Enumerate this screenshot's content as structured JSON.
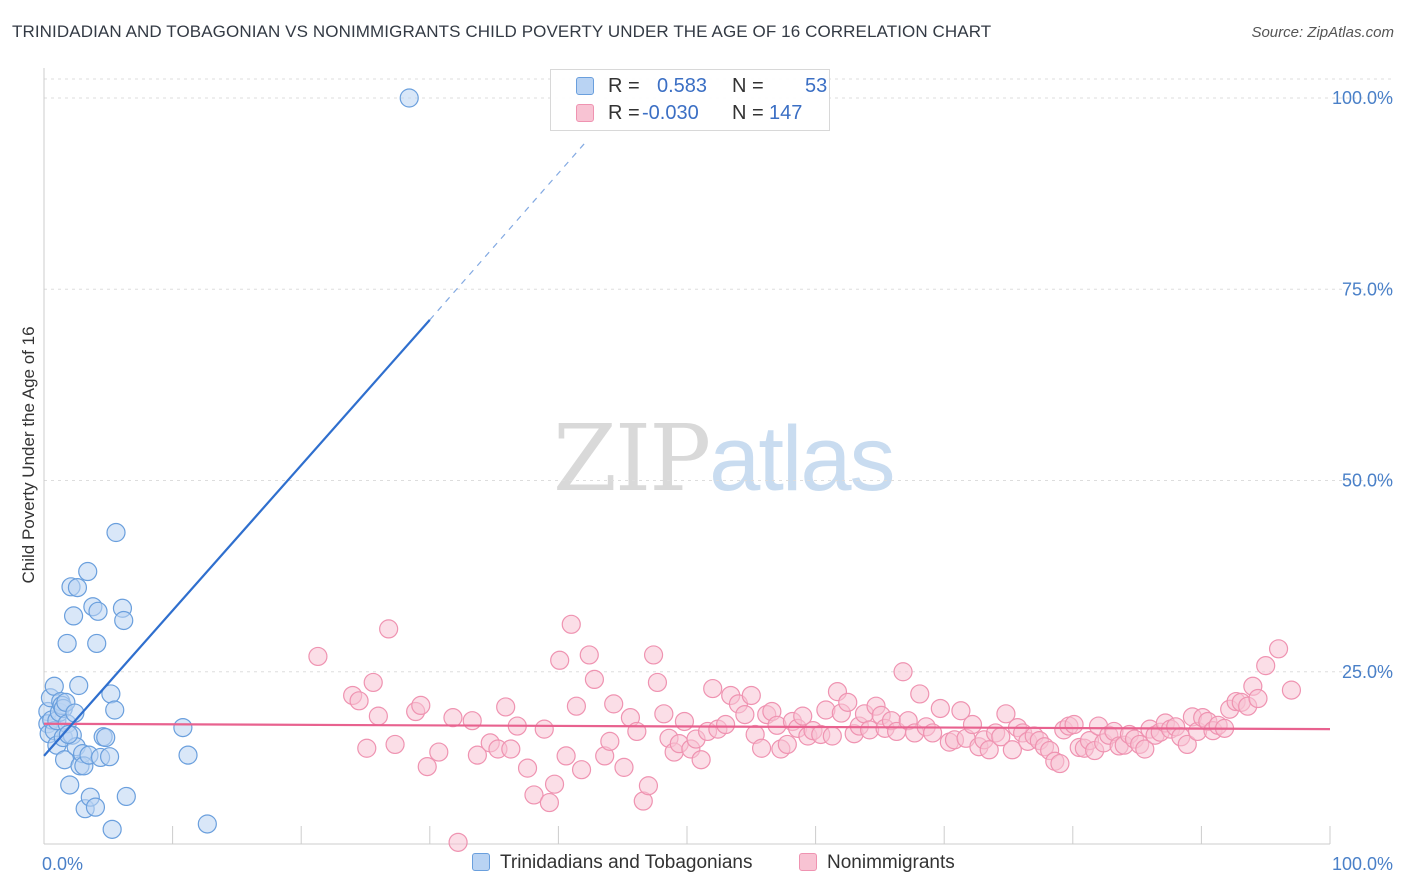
{
  "title": "TRINIDADIAN AND TOBAGONIAN VS NONIMMIGRANTS CHILD POVERTY UNDER THE AGE OF 16 CORRELATION CHART",
  "source": "Source: ZipAtlas.com",
  "watermark": {
    "zip": "ZIP",
    "atlas": "atlas"
  },
  "legend": {
    "r_label": "R =",
    "n_label": "N =",
    "series1": {
      "r": "0.583",
      "n": "53"
    },
    "series2": {
      "r": "-0.030",
      "n": "147"
    }
  },
  "colors": {
    "blue_fill": "#b9d3f3",
    "blue_stroke": "#6a9fdd",
    "blue_line": "#2f6fce",
    "pink_fill": "#f8c3d3",
    "pink_stroke": "#ef93b1",
    "pink_line": "#e8628f",
    "tick_label": "#4a80c8",
    "grid": "#dddddd"
  },
  "chart_data": {
    "type": "scatter",
    "title": "TRINIDADIAN AND TOBAGONIAN VS NONIMMIGRANTS CHILD POVERTY UNDER THE AGE OF 16 CORRELATION CHART",
    "xlabel": "",
    "ylabel": "Child Poverty Under the Age of 16",
    "xlim": [
      0,
      100
    ],
    "ylim": [
      0,
      100
    ],
    "x_tick_labels": [
      "0.0%",
      "100.0%"
    ],
    "y_ticks": [
      25,
      50,
      75,
      100
    ],
    "y_tick_labels": [
      "25.0%",
      "50.0%",
      "75.0%",
      "100.0%"
    ],
    "grid": true,
    "legend_position": "top-center",
    "series": [
      {
        "name": "Trinidadians and Tobagonians",
        "r": 0.583,
        "n": 53,
        "trend": {
          "x0": 0,
          "y0": 14.0,
          "x1": 30,
          "y1": 71.0,
          "dashed_to_x": 42,
          "dashed_to_y": 94.0
        },
        "points": [
          [
            0.3,
            19.8
          ],
          [
            0.3,
            18.2
          ],
          [
            0.4,
            16.9
          ],
          [
            0.5,
            21.6
          ],
          [
            0.6,
            18.7
          ],
          [
            0.8,
            23.1
          ],
          [
            0.8,
            17.3
          ],
          [
            1.0,
            15.4
          ],
          [
            1.0,
            18.6
          ],
          [
            1.2,
            19.7
          ],
          [
            1.3,
            21.1
          ],
          [
            1.4,
            20.6
          ],
          [
            1.5,
            20.2
          ],
          [
            1.5,
            16.4
          ],
          [
            1.6,
            13.5
          ],
          [
            1.7,
            21.0
          ],
          [
            1.8,
            18.2
          ],
          [
            1.8,
            28.7
          ],
          [
            2.0,
            10.2
          ],
          [
            2.1,
            36.1
          ],
          [
            2.2,
            16.7
          ],
          [
            2.3,
            32.3
          ],
          [
            2.4,
            19.6
          ],
          [
            2.5,
            15.2
          ],
          [
            2.6,
            36.0
          ],
          [
            2.7,
            23.2
          ],
          [
            2.8,
            12.7
          ],
          [
            3.0,
            14.3
          ],
          [
            3.1,
            12.7
          ],
          [
            3.2,
            7.1
          ],
          [
            3.4,
            38.1
          ],
          [
            3.5,
            14.1
          ],
          [
            3.6,
            8.6
          ],
          [
            3.8,
            33.5
          ],
          [
            4.0,
            7.3
          ],
          [
            4.1,
            28.7
          ],
          [
            4.2,
            32.9
          ],
          [
            4.4,
            13.8
          ],
          [
            4.6,
            16.5
          ],
          [
            4.8,
            16.4
          ],
          [
            5.1,
            13.9
          ],
          [
            5.2,
            22.1
          ],
          [
            5.3,
            4.4
          ],
          [
            5.5,
            20.0
          ],
          [
            5.6,
            43.2
          ],
          [
            6.1,
            33.3
          ],
          [
            6.2,
            31.7
          ],
          [
            6.4,
            8.7
          ],
          [
            11.2,
            14.1
          ],
          [
            12.7,
            5.1
          ],
          [
            28.4,
            100.0
          ],
          [
            10.8,
            17.7
          ],
          [
            1.9,
            16.8
          ]
        ]
      },
      {
        "name": "Nonimmigrants",
        "r": -0.03,
        "n": 147,
        "trend": {
          "x0": 0,
          "y0": 18.2,
          "x1": 100,
          "y1": 17.5
        },
        "points": [
          [
            21.3,
            27.0
          ],
          [
            24.0,
            21.9
          ],
          [
            24.5,
            21.2
          ],
          [
            25.1,
            15.0
          ],
          [
            25.6,
            23.6
          ],
          [
            26.0,
            19.2
          ],
          [
            26.8,
            30.6
          ],
          [
            27.3,
            15.5
          ],
          [
            28.9,
            19.8
          ],
          [
            29.3,
            20.6
          ],
          [
            29.8,
            12.6
          ],
          [
            30.7,
            14.5
          ],
          [
            31.8,
            19.0
          ],
          [
            32.2,
            2.7
          ],
          [
            33.3,
            18.6
          ],
          [
            33.7,
            14.1
          ],
          [
            34.7,
            15.7
          ],
          [
            35.3,
            14.9
          ],
          [
            35.9,
            20.4
          ],
          [
            36.3,
            14.9
          ],
          [
            36.8,
            17.9
          ],
          [
            37.6,
            12.4
          ],
          [
            38.1,
            8.9
          ],
          [
            38.9,
            17.5
          ],
          [
            39.3,
            7.9
          ],
          [
            39.7,
            10.3
          ],
          [
            40.1,
            26.5
          ],
          [
            40.6,
            14.0
          ],
          [
            41.0,
            31.2
          ],
          [
            41.4,
            20.5
          ],
          [
            41.8,
            12.2
          ],
          [
            42.4,
            27.2
          ],
          [
            42.8,
            24.0
          ],
          [
            43.6,
            14.0
          ],
          [
            44.0,
            15.9
          ],
          [
            44.3,
            20.8
          ],
          [
            45.1,
            12.5
          ],
          [
            45.6,
            19.0
          ],
          [
            46.1,
            17.2
          ],
          [
            46.6,
            8.1
          ],
          [
            47.0,
            10.1
          ],
          [
            47.4,
            27.2
          ],
          [
            47.7,
            23.6
          ],
          [
            48.2,
            19.5
          ],
          [
            48.6,
            16.3
          ],
          [
            49.0,
            14.5
          ],
          [
            49.4,
            15.6
          ],
          [
            49.8,
            18.5
          ],
          [
            50.3,
            14.9
          ],
          [
            50.7,
            16.2
          ],
          [
            51.1,
            13.5
          ],
          [
            51.6,
            17.2
          ],
          [
            52.0,
            22.8
          ],
          [
            52.4,
            17.5
          ],
          [
            53.0,
            18.1
          ],
          [
            53.4,
            21.9
          ],
          [
            54.0,
            20.8
          ],
          [
            54.5,
            19.4
          ],
          [
            55.0,
            21.9
          ],
          [
            55.3,
            16.8
          ],
          [
            55.8,
            15.0
          ],
          [
            56.2,
            19.4
          ],
          [
            56.6,
            19.8
          ],
          [
            57.0,
            18.0
          ],
          [
            57.3,
            14.9
          ],
          [
            57.8,
            15.5
          ],
          [
            58.2,
            18.5
          ],
          [
            58.6,
            17.6
          ],
          [
            59.0,
            19.2
          ],
          [
            59.4,
            16.6
          ],
          [
            59.8,
            17.3
          ],
          [
            60.4,
            16.8
          ],
          [
            60.8,
            20.0
          ],
          [
            61.3,
            16.6
          ],
          [
            61.7,
            22.4
          ],
          [
            62.0,
            19.6
          ],
          [
            62.5,
            21.0
          ],
          [
            63.0,
            16.9
          ],
          [
            63.4,
            17.9
          ],
          [
            63.8,
            19.5
          ],
          [
            64.2,
            17.4
          ],
          [
            64.7,
            20.5
          ],
          [
            65.1,
            19.3
          ],
          [
            65.4,
            17.6
          ],
          [
            65.9,
            18.6
          ],
          [
            66.3,
            17.2
          ],
          [
            66.8,
            25.0
          ],
          [
            67.2,
            18.6
          ],
          [
            67.7,
            17.0
          ],
          [
            68.1,
            22.1
          ],
          [
            68.6,
            17.8
          ],
          [
            69.1,
            17.0
          ],
          [
            69.7,
            20.2
          ],
          [
            70.4,
            15.8
          ],
          [
            70.8,
            16.1
          ],
          [
            71.3,
            19.9
          ],
          [
            71.7,
            16.3
          ],
          [
            72.2,
            18.1
          ],
          [
            72.7,
            15.2
          ],
          [
            73.1,
            16.1
          ],
          [
            73.5,
            14.8
          ],
          [
            74.0,
            17.0
          ],
          [
            74.4,
            16.5
          ],
          [
            74.8,
            19.5
          ],
          [
            75.3,
            14.8
          ],
          [
            75.7,
            17.7
          ],
          [
            76.1,
            17.0
          ],
          [
            76.5,
            15.9
          ],
          [
            77.0,
            16.6
          ],
          [
            77.4,
            16.0
          ],
          [
            77.8,
            15.2
          ],
          [
            78.2,
            14.7
          ],
          [
            78.6,
            13.3
          ],
          [
            79.0,
            13.0
          ],
          [
            79.3,
            17.4
          ],
          [
            79.7,
            17.9
          ],
          [
            80.1,
            18.1
          ],
          [
            80.5,
            15.1
          ],
          [
            80.9,
            15.0
          ],
          [
            81.3,
            16.0
          ],
          [
            81.7,
            14.7
          ],
          [
            82.0,
            17.9
          ],
          [
            82.4,
            15.7
          ],
          [
            82.8,
            16.7
          ],
          [
            83.2,
            17.2
          ],
          [
            83.6,
            15.3
          ],
          [
            84.0,
            15.4
          ],
          [
            84.4,
            16.8
          ],
          [
            84.8,
            16.2
          ],
          [
            85.2,
            15.5
          ],
          [
            85.6,
            14.9
          ],
          [
            86.0,
            17.5
          ],
          [
            86.4,
            16.7
          ],
          [
            86.8,
            17.1
          ],
          [
            87.2,
            18.3
          ],
          [
            87.6,
            17.5
          ],
          [
            88.0,
            17.8
          ],
          [
            88.4,
            16.5
          ],
          [
            88.9,
            15.5
          ],
          [
            89.3,
            19.1
          ],
          [
            89.7,
            17.2
          ],
          [
            90.1,
            19.0
          ],
          [
            90.5,
            18.5
          ],
          [
            90.9,
            17.3
          ],
          [
            91.3,
            18.0
          ],
          [
            91.8,
            17.6
          ],
          [
            92.2,
            20.1
          ],
          [
            92.7,
            21.1
          ],
          [
            93.1,
            21.0
          ],
          [
            93.6,
            20.5
          ],
          [
            94.0,
            23.1
          ],
          [
            94.4,
            21.5
          ],
          [
            95.0,
            25.8
          ],
          [
            96.0,
            28.0
          ],
          [
            97.0,
            22.6
          ]
        ]
      }
    ]
  }
}
